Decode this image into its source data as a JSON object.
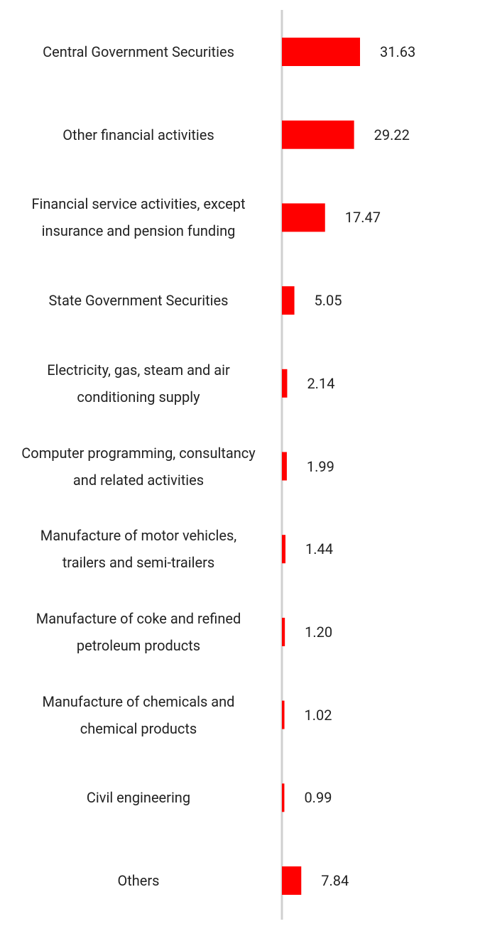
{
  "chart_data": {
    "type": "bar",
    "orientation": "horizontal",
    "categories": [
      "Central Government Securities",
      "Other financial activities",
      "Financial service activities, except insurance and pension funding",
      "State Government Securities",
      "Electricity, gas, steam and air conditioning supply",
      "Computer programming, consultancy and related activities",
      "Manufacture of motor vehicles, trailers and semi-trailers",
      "Manufacture of coke and refined petroleum products",
      "Manufacture of chemicals and chemical products",
      "Civil engineering",
      "Others"
    ],
    "values": [
      31.63,
      29.22,
      17.47,
      5.05,
      2.14,
      1.99,
      1.44,
      1.2,
      1.02,
      0.99,
      7.84
    ],
    "value_labels": [
      "31.63",
      "29.22",
      "17.47",
      "5.05",
      "2.14",
      "1.99",
      "1.44",
      "1.20",
      "1.02",
      "0.99",
      "7.84"
    ],
    "color": "#ff0000"
  }
}
